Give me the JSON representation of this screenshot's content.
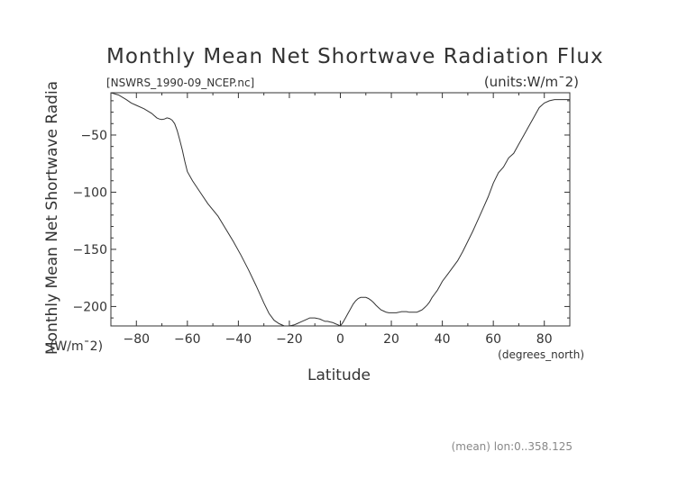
{
  "chart_data": {
    "type": "line",
    "title": "Monthly Mean Net Shortwave Radiation Flux",
    "subtitle_left": "[NSWRS_1990-09_NCEP.nc]",
    "subtitle_right": "(units:W/m¯2)",
    "xlabel": "Latitude",
    "xunit": "(degrees_north)",
    "ylabel": "Monthly Mean Net Shortwave Radia",
    "yunit": "(W/m¯2)",
    "footer": "(mean) lon:0..358.125",
    "xlim": [
      -90,
      90
    ],
    "ylim": [
      -217,
      -13
    ],
    "x_ticks": [
      -80,
      -60,
      -40,
      -20,
      0,
      20,
      40,
      60,
      80
    ],
    "y_ticks": [
      -50,
      -100,
      -150,
      -200
    ],
    "grid": false,
    "series": [
      {
        "x": [
          -90,
          -87,
          -84,
          -82,
          -80,
          -77,
          -74,
          -72,
          -71,
          -70,
          -69,
          -68,
          -67,
          -66,
          -65,
          -64,
          -63,
          -62,
          -61,
          -60,
          -58,
          -55,
          -52,
          -48,
          -45,
          -42,
          -39,
          -36,
          -33,
          -30,
          -28,
          -26,
          -24,
          -22,
          -20,
          -19,
          -18,
          -17,
          -16,
          -15,
          -14,
          -13,
          -12,
          -11,
          -10,
          -9,
          -8,
          -7,
          -6,
          -5,
          -4,
          -3,
          -2,
          -1,
          0,
          1,
          2,
          3,
          4,
          5,
          6,
          7,
          8,
          9,
          10,
          11,
          12,
          13,
          14,
          15,
          16,
          17,
          18,
          19,
          20,
          21,
          22,
          23,
          24,
          25,
          26,
          27,
          28,
          29,
          30,
          31,
          32,
          33,
          34,
          35,
          36,
          37,
          38,
          39,
          40,
          42,
          44,
          46,
          48,
          50,
          52,
          54,
          56,
          58,
          60,
          62,
          64,
          66,
          68,
          70,
          72,
          74,
          76,
          78,
          80,
          82,
          84,
          86,
          88,
          90
        ],
        "y": [
          -13,
          -15,
          -19,
          -22,
          -24,
          -27,
          -31,
          -35,
          -36,
          -36.5,
          -36,
          -35,
          -35.5,
          -37,
          -40,
          -46,
          -54,
          -63,
          -73,
          -82,
          -90,
          -100,
          -110,
          -121,
          -132,
          -143,
          -155,
          -168,
          -182,
          -197,
          -206,
          -212,
          -215,
          -217,
          -217,
          -216.5,
          -216,
          -215,
          -214,
          -213,
          -212,
          -211,
          -210,
          -210,
          -210,
          -210.5,
          -211,
          -212,
          -213,
          -213,
          -213.5,
          -214,
          -215,
          -216,
          -217,
          -214,
          -210,
          -206,
          -202,
          -198,
          -195,
          -193,
          -192,
          -192,
          -192,
          -193,
          -194.5,
          -196.5,
          -199,
          -201,
          -203,
          -204,
          -205,
          -205.5,
          -205.5,
          -205.5,
          -205.5,
          -205,
          -204.5,
          -204.5,
          -204.5,
          -205,
          -205,
          -205,
          -205,
          -204,
          -203,
          -201,
          -199,
          -196,
          -192,
          -189,
          -186,
          -182,
          -178,
          -172,
          -166,
          -160,
          -152,
          -143,
          -134,
          -124,
          -114,
          -104,
          -92,
          -83,
          -78,
          -70,
          -66,
          -58,
          -50,
          -42,
          -34,
          -26,
          -22,
          -20,
          -19,
          -19,
          -19,
          -19
        ]
      }
    ]
  }
}
